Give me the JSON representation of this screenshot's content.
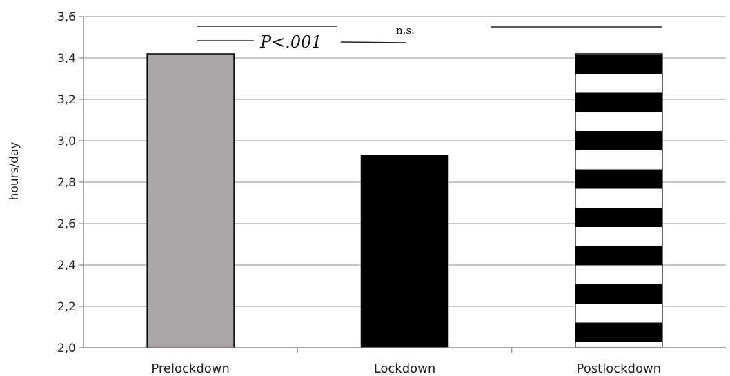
{
  "chart_data": {
    "type": "bar",
    "categories": [
      "Prelockdown",
      "Lockdown",
      "Postlockdown"
    ],
    "values": [
      3.42,
      2.93,
      3.42
    ],
    "ylabel": "hours/day",
    "xlabel": "",
    "title": "",
    "ylim": [
      2.0,
      3.6
    ],
    "yticks": [
      "2,0",
      "2,2",
      "2,4",
      "2,6",
      "2,8",
      "3,0",
      "3,2",
      "3,4",
      "3,6"
    ],
    "grid": true,
    "bar_styles": [
      {
        "fill": "#aba7a7",
        "pattern": "solid"
      },
      {
        "fill": "#000000",
        "pattern": "solid"
      },
      {
        "fill": "#000000",
        "pattern": "horizontal-stripes"
      }
    ],
    "annotations": {
      "p_label": "P<.001",
      "ns_label": "n.s."
    }
  }
}
